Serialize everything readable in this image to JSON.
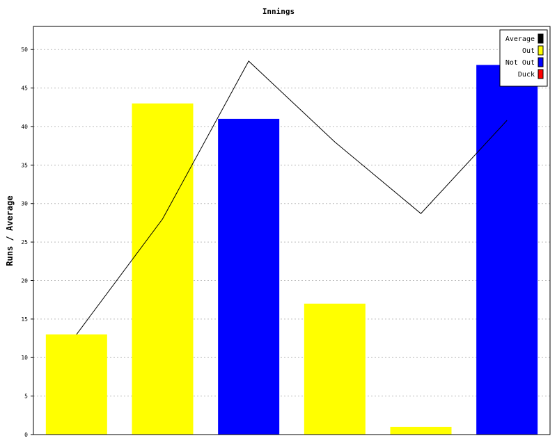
{
  "chart_data": {
    "type": "bar",
    "title": "Innings",
    "xlabel": "",
    "ylabel": "Runs / Average",
    "ylim": [
      0,
      53
    ],
    "yticks": [
      0,
      5,
      10,
      15,
      20,
      25,
      30,
      35,
      40,
      45,
      50
    ],
    "grid": true,
    "legend_position": "top-right",
    "innings": [
      {
        "runs": 13,
        "status": "Out"
      },
      {
        "runs": 43,
        "status": "Out"
      },
      {
        "runs": 41,
        "status": "Not Out"
      },
      {
        "runs": 17,
        "status": "Out"
      },
      {
        "runs": 1,
        "status": "Out"
      },
      {
        "runs": 48,
        "status": "Not Out"
      }
    ],
    "average": [
      13,
      28,
      48.5,
      38,
      28.7,
      40.8
    ],
    "legend": [
      {
        "label": "Average",
        "color": "#000000"
      },
      {
        "label": "Out",
        "color": "#ffff00"
      },
      {
        "label": "Not Out",
        "color": "#0000ff"
      },
      {
        "label": "Duck",
        "color": "#ff0000"
      }
    ],
    "status_colors": {
      "Out": "#ffff00",
      "Not Out": "#0000ff",
      "Duck": "#ff0000"
    }
  }
}
